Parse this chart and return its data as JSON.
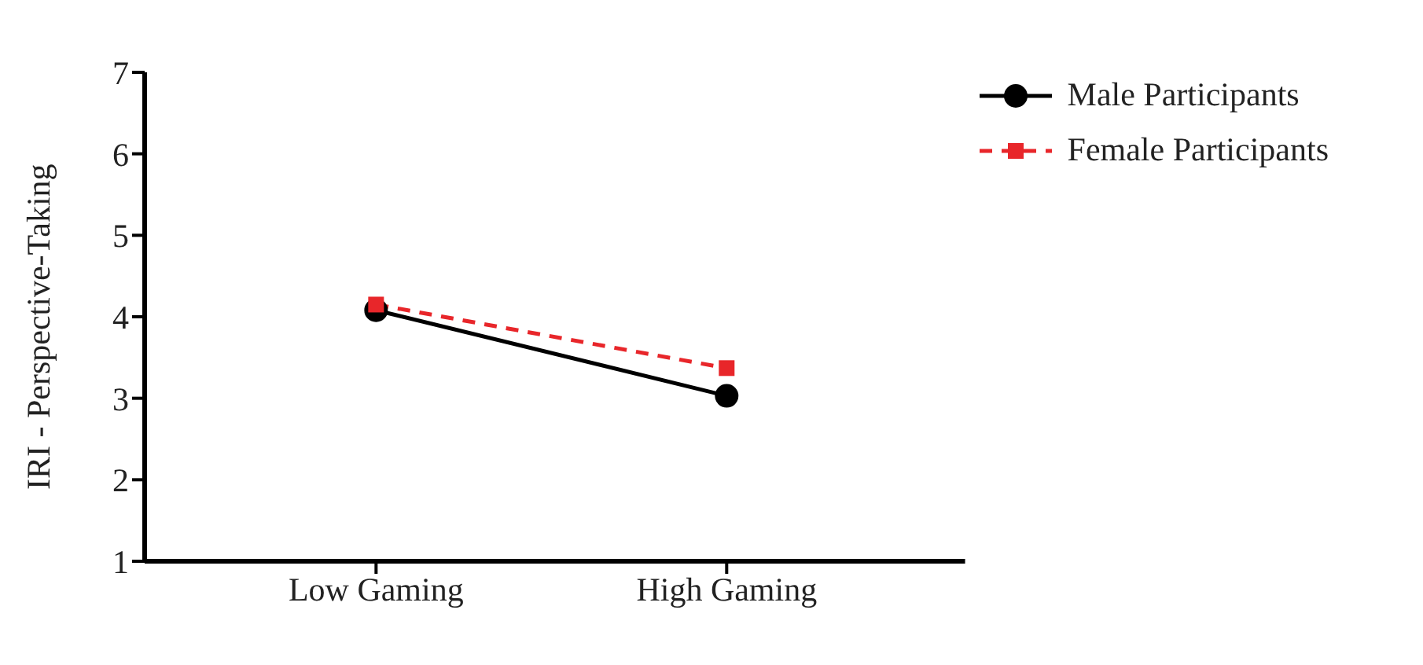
{
  "chart_data": {
    "type": "line",
    "ylabel": "IRI - Perspective-Taking",
    "categories": [
      "Low Gaming",
      "High Gaming"
    ],
    "series": [
      {
        "name": "Male Participants",
        "color": "#000000",
        "values": [
          4.08,
          3.03
        ],
        "marker": "circle",
        "line_style": "solid"
      },
      {
        "name": "Female Participants",
        "color": "#e8262a",
        "values": [
          4.15,
          3.37
        ],
        "marker": "square",
        "line_style": "dashed"
      }
    ],
    "ylim": [
      1,
      7
    ],
    "yticks": [
      1,
      2,
      3,
      4,
      5,
      6,
      7
    ],
    "grid": false,
    "legend": "top right"
  }
}
